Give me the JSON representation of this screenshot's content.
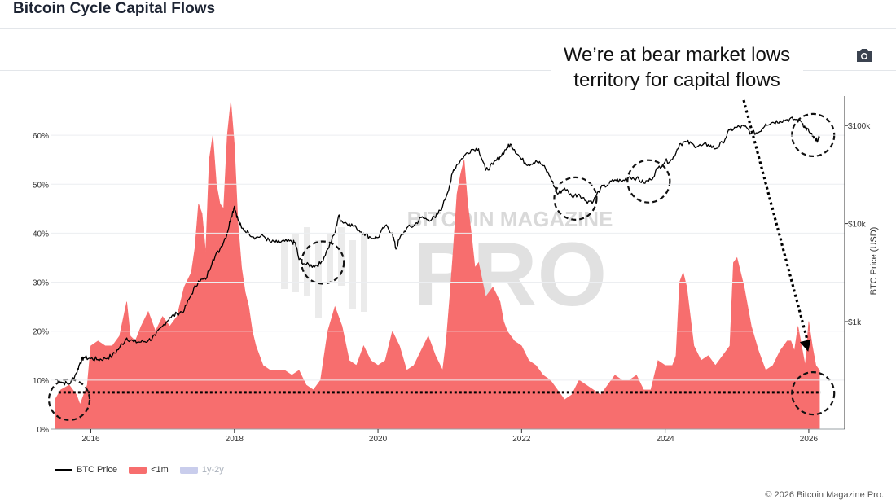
{
  "header": {
    "title": "Bitcoin Cycle Capital Flows",
    "camera_icon": "camera-icon"
  },
  "annotation": {
    "line1": "We’re at bear market lows",
    "line2": "territory for capital flows"
  },
  "watermark": {
    "line1": "BITCOIN MAGAZINE",
    "line2": "PRO"
  },
  "legend": {
    "btc": "BTC Price",
    "lt1m": "<1m",
    "y1y2": "1y-2y"
  },
  "colors": {
    "area": "#f76e6e",
    "price": "#000000",
    "y1y2": "#c9cdec"
  },
  "copyright": "© 2026 Bitcoin Magazine Pro.",
  "chart_data": {
    "type": "area",
    "title": "Bitcoin Cycle Capital Flows",
    "x_range": [
      2015.45,
      2026.5
    ],
    "x_ticks": [
      {
        "v": 2016,
        "label": "2016"
      },
      {
        "v": 2018,
        "label": "2018"
      },
      {
        "v": 2020,
        "label": "2020"
      },
      {
        "v": 2022,
        "label": "2022"
      },
      {
        "v": 2024,
        "label": "2024"
      },
      {
        "v": 2026,
        "label": "2026"
      }
    ],
    "y_left": {
      "range": [
        0,
        68
      ],
      "ticks": [
        {
          "v": 0,
          "label": "0%"
        },
        {
          "v": 10,
          "label": "10%"
        },
        {
          "v": 20,
          "label": "20%"
        },
        {
          "v": 30,
          "label": "30%"
        },
        {
          "v": 40,
          "label": "40%"
        },
        {
          "v": 50,
          "label": "50%"
        },
        {
          "v": 60,
          "label": "60%"
        }
      ]
    },
    "y_right": {
      "label": "BTC Price (USD)",
      "scale": "log",
      "range": [
        80,
        200000
      ],
      "ticks": [
        {
          "v": 1000,
          "label": "$1k"
        },
        {
          "v": 10000,
          "label": "$10k"
        },
        {
          "v": 100000,
          "label": "$100k"
        }
      ]
    },
    "threshold_line": 7.5,
    "series": [
      {
        "name": "<1m",
        "type": "area",
        "unit": "%",
        "x": [
          2015.5,
          2015.58,
          2015.7,
          2015.8,
          2015.85,
          2015.95,
          2016.0,
          2016.1,
          2016.2,
          2016.3,
          2016.4,
          2016.5,
          2016.55,
          2016.62,
          2016.7,
          2016.8,
          2016.9,
          2017.0,
          2017.1,
          2017.2,
          2017.3,
          2017.4,
          2017.45,
          2017.5,
          2017.55,
          2017.6,
          2017.65,
          2017.7,
          2017.75,
          2017.8,
          2017.85,
          2017.9,
          2017.95,
          2018.0,
          2018.05,
          2018.1,
          2018.15,
          2018.2,
          2018.25,
          2018.3,
          2018.4,
          2018.5,
          2018.6,
          2018.7,
          2018.8,
          2018.9,
          2019.0,
          2019.1,
          2019.2,
          2019.3,
          2019.4,
          2019.5,
          2019.6,
          2019.7,
          2019.8,
          2019.9,
          2020.0,
          2020.1,
          2020.2,
          2020.3,
          2020.4,
          2020.5,
          2020.6,
          2020.7,
          2020.8,
          2020.9,
          2020.95,
          2021.0,
          2021.05,
          2021.1,
          2021.15,
          2021.2,
          2021.25,
          2021.3,
          2021.35,
          2021.4,
          2021.5,
          2021.6,
          2021.7,
          2021.75,
          2021.8,
          2021.9,
          2022.0,
          2022.1,
          2022.2,
          2022.3,
          2022.4,
          2022.5,
          2022.6,
          2022.7,
          2022.8,
          2022.9,
          2023.0,
          2023.1,
          2023.2,
          2023.3,
          2023.4,
          2023.5,
          2023.6,
          2023.7,
          2023.8,
          2023.9,
          2024.0,
          2024.1,
          2024.15,
          2024.2,
          2024.25,
          2024.3,
          2024.4,
          2024.5,
          2024.6,
          2024.7,
          2024.8,
          2024.9,
          2024.95,
          2025.0,
          2025.1,
          2025.2,
          2025.3,
          2025.4,
          2025.5,
          2025.6,
          2025.7,
          2025.75,
          2025.8,
          2025.85,
          2025.9,
          2025.95,
          2026.0,
          2026.05,
          2026.1,
          2026.15
        ],
        "values": [
          6,
          8,
          9,
          7,
          5,
          9,
          17,
          18,
          17,
          17,
          19,
          26,
          19,
          18,
          21,
          24,
          20,
          23,
          21,
          23,
          29,
          32,
          37,
          46,
          44,
          36,
          55,
          60,
          50,
          46,
          45,
          60,
          67,
          58,
          42,
          33,
          28,
          25,
          20,
          17,
          13,
          12,
          12,
          12,
          11,
          12,
          9,
          8,
          10,
          20,
          25,
          21,
          14,
          13,
          17,
          14,
          13,
          14,
          20,
          17,
          12,
          13,
          16,
          19,
          15,
          12,
          18,
          27,
          37,
          48,
          52,
          55,
          46,
          40,
          33,
          34,
          27,
          29,
          26,
          22,
          20,
          18,
          17,
          14,
          13,
          11,
          10,
          8,
          6,
          7,
          10,
          9,
          8,
          7,
          9,
          11,
          10,
          10,
          11,
          8,
          8,
          14,
          13,
          13,
          15,
          30,
          32,
          29,
          17,
          14,
          15,
          13,
          15,
          17,
          34,
          35,
          29,
          21,
          16,
          12,
          13,
          16,
          18,
          18,
          16,
          21,
          17,
          13,
          22,
          17,
          13,
          12
        ],
        "stats": {
          "sampled": true
        }
      },
      {
        "name": "BTC Price",
        "type": "line",
        "unit": "USD",
        "x": [
          2015.5,
          2015.6,
          2015.7,
          2015.8,
          2015.85,
          2015.9,
          2016.0,
          2016.1,
          2016.2,
          2016.3,
          2016.4,
          2016.5,
          2016.6,
          2016.7,
          2016.8,
          2016.9,
          2017.0,
          2017.1,
          2017.2,
          2017.3,
          2017.4,
          2017.5,
          2017.6,
          2017.7,
          2017.8,
          2017.9,
          2017.95,
          2018.0,
          2018.05,
          2018.1,
          2018.2,
          2018.3,
          2018.4,
          2018.5,
          2018.6,
          2018.7,
          2018.8,
          2018.85,
          2018.9,
          2019.0,
          2019.1,
          2019.2,
          2019.3,
          2019.4,
          2019.45,
          2019.5,
          2019.6,
          2019.7,
          2019.8,
          2019.9,
          2020.0,
          2020.1,
          2020.2,
          2020.25,
          2020.3,
          2020.4,
          2020.5,
          2020.6,
          2020.7,
          2020.8,
          2020.9,
          2021.0,
          2021.05,
          2021.1,
          2021.2,
          2021.3,
          2021.4,
          2021.5,
          2021.6,
          2021.7,
          2021.8,
          2021.85,
          2021.9,
          2022.0,
          2022.1,
          2022.2,
          2022.3,
          2022.4,
          2022.5,
          2022.6,
          2022.7,
          2022.8,
          2022.9,
          2023.0,
          2023.1,
          2023.2,
          2023.3,
          2023.4,
          2023.5,
          2023.6,
          2023.7,
          2023.8,
          2023.9,
          2024.0,
          2024.1,
          2024.2,
          2024.3,
          2024.4,
          2024.5,
          2024.6,
          2024.7,
          2024.8,
          2024.9,
          2025.0,
          2025.1,
          2025.2,
          2025.3,
          2025.4,
          2025.5,
          2025.6,
          2025.7,
          2025.8,
          2025.9,
          2025.95,
          2026.0,
          2026.05,
          2026.1,
          2026.15
        ],
        "values": [
          260,
          240,
          230,
          300,
          380,
          430,
          420,
          410,
          420,
          450,
          540,
          680,
          620,
          620,
          640,
          720,
          900,
          1100,
          1200,
          1300,
          1900,
          2600,
          2700,
          4300,
          5500,
          8000,
          11500,
          15000,
          11000,
          9000,
          8000,
          7200,
          7500,
          6500,
          6400,
          6600,
          6500,
          6300,
          4300,
          3800,
          3700,
          3900,
          5500,
          8000,
          12000,
          10500,
          10000,
          9000,
          8000,
          7200,
          7200,
          9500,
          8000,
          5500,
          7000,
          9000,
          9500,
          11500,
          11000,
          11500,
          15000,
          25000,
          35000,
          40000,
          49000,
          57000,
          58000,
          35000,
          40000,
          48000,
          60000,
          64000,
          57000,
          45000,
          40000,
          44000,
          39000,
          30000,
          20000,
          23000,
          19000,
          20000,
          17000,
          17000,
          23000,
          25000,
          28000,
          27000,
          30000,
          29000,
          26000,
          28000,
          37000,
          43000,
          45000,
          65000,
          68000,
          63000,
          62000,
          64000,
          58000,
          67000,
          90000,
          96000,
          98000,
          84000,
          85000,
          104000,
          108000,
          112000,
          115000,
          116000,
          110000,
          95000,
          88000,
          78000,
          70000,
          75000
        ]
      },
      {
        "name": "1y-2y",
        "type": "area",
        "visible": false
      }
    ],
    "legend_position": "bottom-left"
  }
}
